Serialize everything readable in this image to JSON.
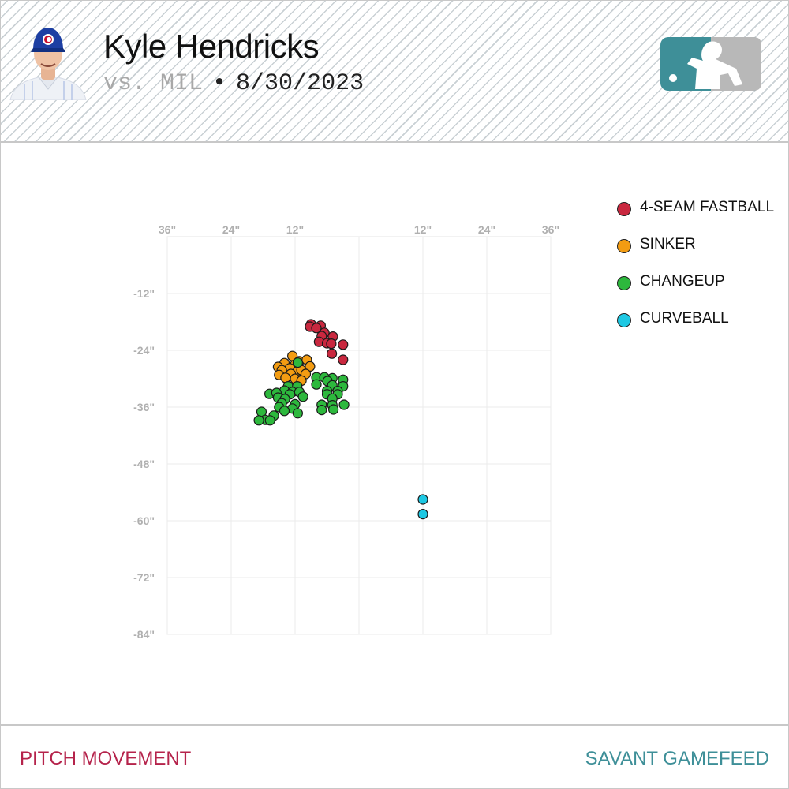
{
  "header": {
    "player_name": "Kyle Hendricks",
    "opponent": "vs. MIL",
    "separator": "•",
    "date": "8/30/2023"
  },
  "footer": {
    "left_label": "PITCH MOVEMENT",
    "right_label": "SAVANT GAMEFEED"
  },
  "colors": {
    "4-SEAM FASTBALL": "#c9283f",
    "SINKER": "#f39c12",
    "CHANGEUP": "#2db83d",
    "CURVEBALL": "#1ec8e3",
    "footer_left": "#b5234b",
    "footer_right": "#3e8f98",
    "logo_left": "#3e8f98",
    "logo_right": "#b8b8b8"
  },
  "chart_data": {
    "type": "scatter",
    "title": "",
    "xlabel": "",
    "ylabel": "",
    "xlim": [
      -36,
      36
    ],
    "ylim": [
      -84,
      0
    ],
    "x_ticks": [
      -36,
      -24,
      -12,
      12,
      24,
      36
    ],
    "x_tick_labels": [
      "36\"",
      "24\"",
      "12\"",
      "12\"",
      "24\"",
      "36\""
    ],
    "y_ticks": [
      -12,
      -24,
      -36,
      -48,
      -60,
      -72,
      -84
    ],
    "y_tick_labels": [
      "-12\"",
      "-24\"",
      "-36\"",
      "-48\"",
      "-60\"",
      "-72\"",
      "-84\""
    ],
    "grid": true,
    "legend_position": "top-right",
    "series": [
      {
        "name": "4-SEAM FASTBALL",
        "points": [
          [
            -9.0,
            -18.5
          ],
          [
            -9.2,
            -19.0
          ],
          [
            -7.2,
            -18.8
          ],
          [
            -8.0,
            -19.3
          ],
          [
            -6.5,
            -20.3
          ],
          [
            -7.0,
            -21.0
          ],
          [
            -4.9,
            -21.1
          ],
          [
            -7.5,
            -22.2
          ],
          [
            -6.0,
            -22.5
          ],
          [
            -5.2,
            -22.6
          ],
          [
            -3.0,
            -22.8
          ],
          [
            -5.1,
            -24.7
          ],
          [
            -3.0,
            -26.0
          ]
        ]
      },
      {
        "name": "SINKER",
        "points": [
          [
            -12.5,
            -25.2
          ],
          [
            -11.2,
            -26.3
          ],
          [
            -14.0,
            -26.7
          ],
          [
            -9.8,
            -26.0
          ],
          [
            -12.0,
            -27.0
          ],
          [
            -15.2,
            -27.5
          ],
          [
            -13.0,
            -27.8
          ],
          [
            -9.2,
            -27.4
          ],
          [
            -14.5,
            -28.2
          ],
          [
            -11.5,
            -28.4
          ],
          [
            -10.8,
            -28.2
          ],
          [
            -12.8,
            -29.0
          ],
          [
            -10.0,
            -29.0
          ],
          [
            -15.0,
            -29.2
          ],
          [
            -13.8,
            -29.8
          ],
          [
            -12.0,
            -30.0
          ],
          [
            -10.8,
            -30.4
          ]
        ]
      },
      {
        "name": "CHANGEUP",
        "points": [
          [
            -11.5,
            -26.6
          ],
          [
            -8.0,
            -29.7
          ],
          [
            -6.5,
            -29.7
          ],
          [
            -5.0,
            -29.9
          ],
          [
            -3.0,
            -30.2
          ],
          [
            -5.9,
            -30.5
          ],
          [
            -8.0,
            -31.2
          ],
          [
            -5.0,
            -31.4
          ],
          [
            -13.3,
            -31.6
          ],
          [
            -11.6,
            -31.6
          ],
          [
            -3.0,
            -31.6
          ],
          [
            -14.0,
            -32.5
          ],
          [
            -12.5,
            -32.8
          ],
          [
            -11.2,
            -32.8
          ],
          [
            -6.0,
            -32.6
          ],
          [
            -4.0,
            -32.6
          ],
          [
            -16.8,
            -33.2
          ],
          [
            -15.5,
            -33.0
          ],
          [
            -13.0,
            -33.3
          ],
          [
            -6.0,
            -33.3
          ],
          [
            -4.0,
            -33.3
          ],
          [
            -10.5,
            -33.8
          ],
          [
            -15.2,
            -34.0
          ],
          [
            -13.9,
            -34.3
          ],
          [
            -5.0,
            -34.2
          ],
          [
            -14.5,
            -35.2
          ],
          [
            -12.0,
            -35.4
          ],
          [
            -7.0,
            -35.5
          ],
          [
            -5.0,
            -35.6
          ],
          [
            -2.8,
            -35.5
          ],
          [
            -15.0,
            -36.0
          ],
          [
            -12.5,
            -36.3
          ],
          [
            -7.0,
            -36.6
          ],
          [
            -4.8,
            -36.5
          ],
          [
            -14.0,
            -36.8
          ],
          [
            -11.5,
            -37.3
          ],
          [
            -18.3,
            -37.0
          ],
          [
            -16.0,
            -37.8
          ],
          [
            -17.6,
            -38.7
          ],
          [
            -18.8,
            -38.8
          ],
          [
            -16.7,
            -38.8
          ]
        ]
      },
      {
        "name": "CURVEBALL",
        "points": [
          [
            12.0,
            -55.5
          ],
          [
            12.0,
            -58.6
          ]
        ]
      }
    ]
  }
}
